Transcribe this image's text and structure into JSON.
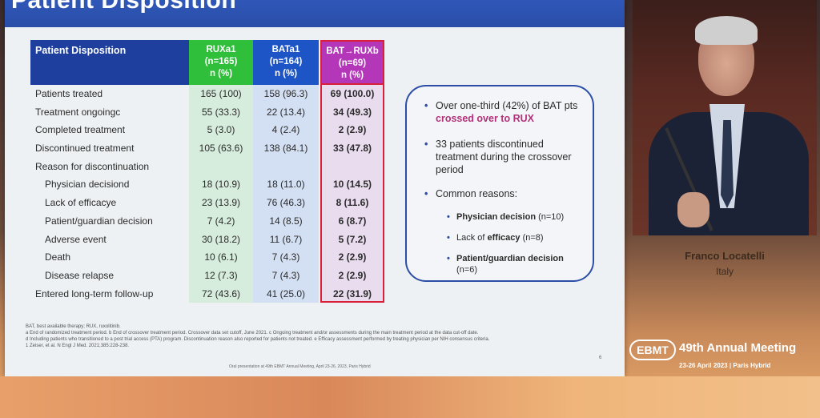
{
  "slide": {
    "title": "Patient Disposition",
    "table": {
      "header": {
        "label": "Patient Disposition",
        "cols": [
          {
            "l1": "RUXa1",
            "l2": "(n=165)",
            "l3": "n (%)"
          },
          {
            "l1": "BATa1",
            "l2": "(n=164)",
            "l3": "n (%)"
          },
          {
            "l1": "BAT→RUXb",
            "l2": "(n=69)",
            "l3": "n (%)"
          }
        ]
      },
      "rows": [
        {
          "label": "Patients treated",
          "c1": "165 (100)",
          "c2": "158 (96.3)",
          "c3": "69 (100.0)"
        },
        {
          "label": "Treatment ongoingc",
          "c1": "55 (33.3)",
          "c2": "22 (13.4)",
          "c3": "34 (49.3)"
        },
        {
          "label": "Completed treatment",
          "c1": "5 (3.0)",
          "c2": "4 (2.4)",
          "c3": "2 (2.9)"
        },
        {
          "label": "Discontinued treatment",
          "c1": "105 (63.6)",
          "c2": "138 (84.1)",
          "c3": "33 (47.8)"
        },
        {
          "label": "Reason for discontinuation",
          "c1": "",
          "c2": "",
          "c3": ""
        },
        {
          "label": "Physician decisiond",
          "c1": "18 (10.9)",
          "c2": "18 (11.0)",
          "c3": "10 (14.5)"
        },
        {
          "label": "Lack of efficacye",
          "c1": "23 (13.9)",
          "c2": "76 (46.3)",
          "c3": "8 (11.6)"
        },
        {
          "label": "Patient/guardian decision",
          "c1": "7 (4.2)",
          "c2": "14 (8.5)",
          "c3": "6 (8.7)"
        },
        {
          "label": "Adverse event",
          "c1": "30 (18.2)",
          "c2": "11 (6.7)",
          "c3": "5 (7.2)"
        },
        {
          "label": "Death",
          "c1": "10 (6.1)",
          "c2": "7 (4.3)",
          "c3": "2 (2.9)"
        },
        {
          "label": "Disease relapse",
          "c1": "12 (7.3)",
          "c2": "7 (4.3)",
          "c3": "2 (2.9)"
        },
        {
          "label": "Entered long-term follow-up",
          "c1": "72 (43.6)",
          "c2": "41 (25.0)",
          "c3": "22 (31.9)"
        }
      ]
    },
    "callout": {
      "b1_pre": "Over one-third (42%) of BAT pts ",
      "b1_hl": "crossed over to RUX",
      "b2": "33 patients discontinued treatment during the crossover period",
      "b3": "Common reasons:",
      "s1_bold": "Physician decision",
      "s1_rest": " (n=10)",
      "s2_pre": "Lack of ",
      "s2_bold": "efficacy",
      "s2_rest": " (n=8)",
      "s3_bold": "Patient/guardian decision",
      "s3_rest": " (n=6)"
    },
    "footnotes": [
      "BAT, best available therapy; RUX, ruxolitinib.",
      "a End of randomized treatment period. b End of crossover treatment period. Crossover data set cutoff, June 2021. c Ongoing treatment and/or assessments during the main treatment period at the data cut-off date.",
      "d Including patients who transitioned to a post trial access (PTA) program. Discontinuation reason also reported for patients not treated. e Efficacy assessment performed by treating physician per NIH consensus criteria.",
      "1 Zeiser, et al. N Engl J Med. 2021;385:228-238."
    ],
    "oral": "Oral presentation at 49th EBMT Annual Meeting, April 23-26, 2023, Paris Hybrid",
    "page": "6"
  },
  "speaker": {
    "name": "Franco Locatelli",
    "country": "Italy"
  },
  "event": {
    "logo": "EBMT",
    "title": "49th Annual Meeting",
    "subtitle": "23-26 April 2023 | Paris Hybrid"
  }
}
